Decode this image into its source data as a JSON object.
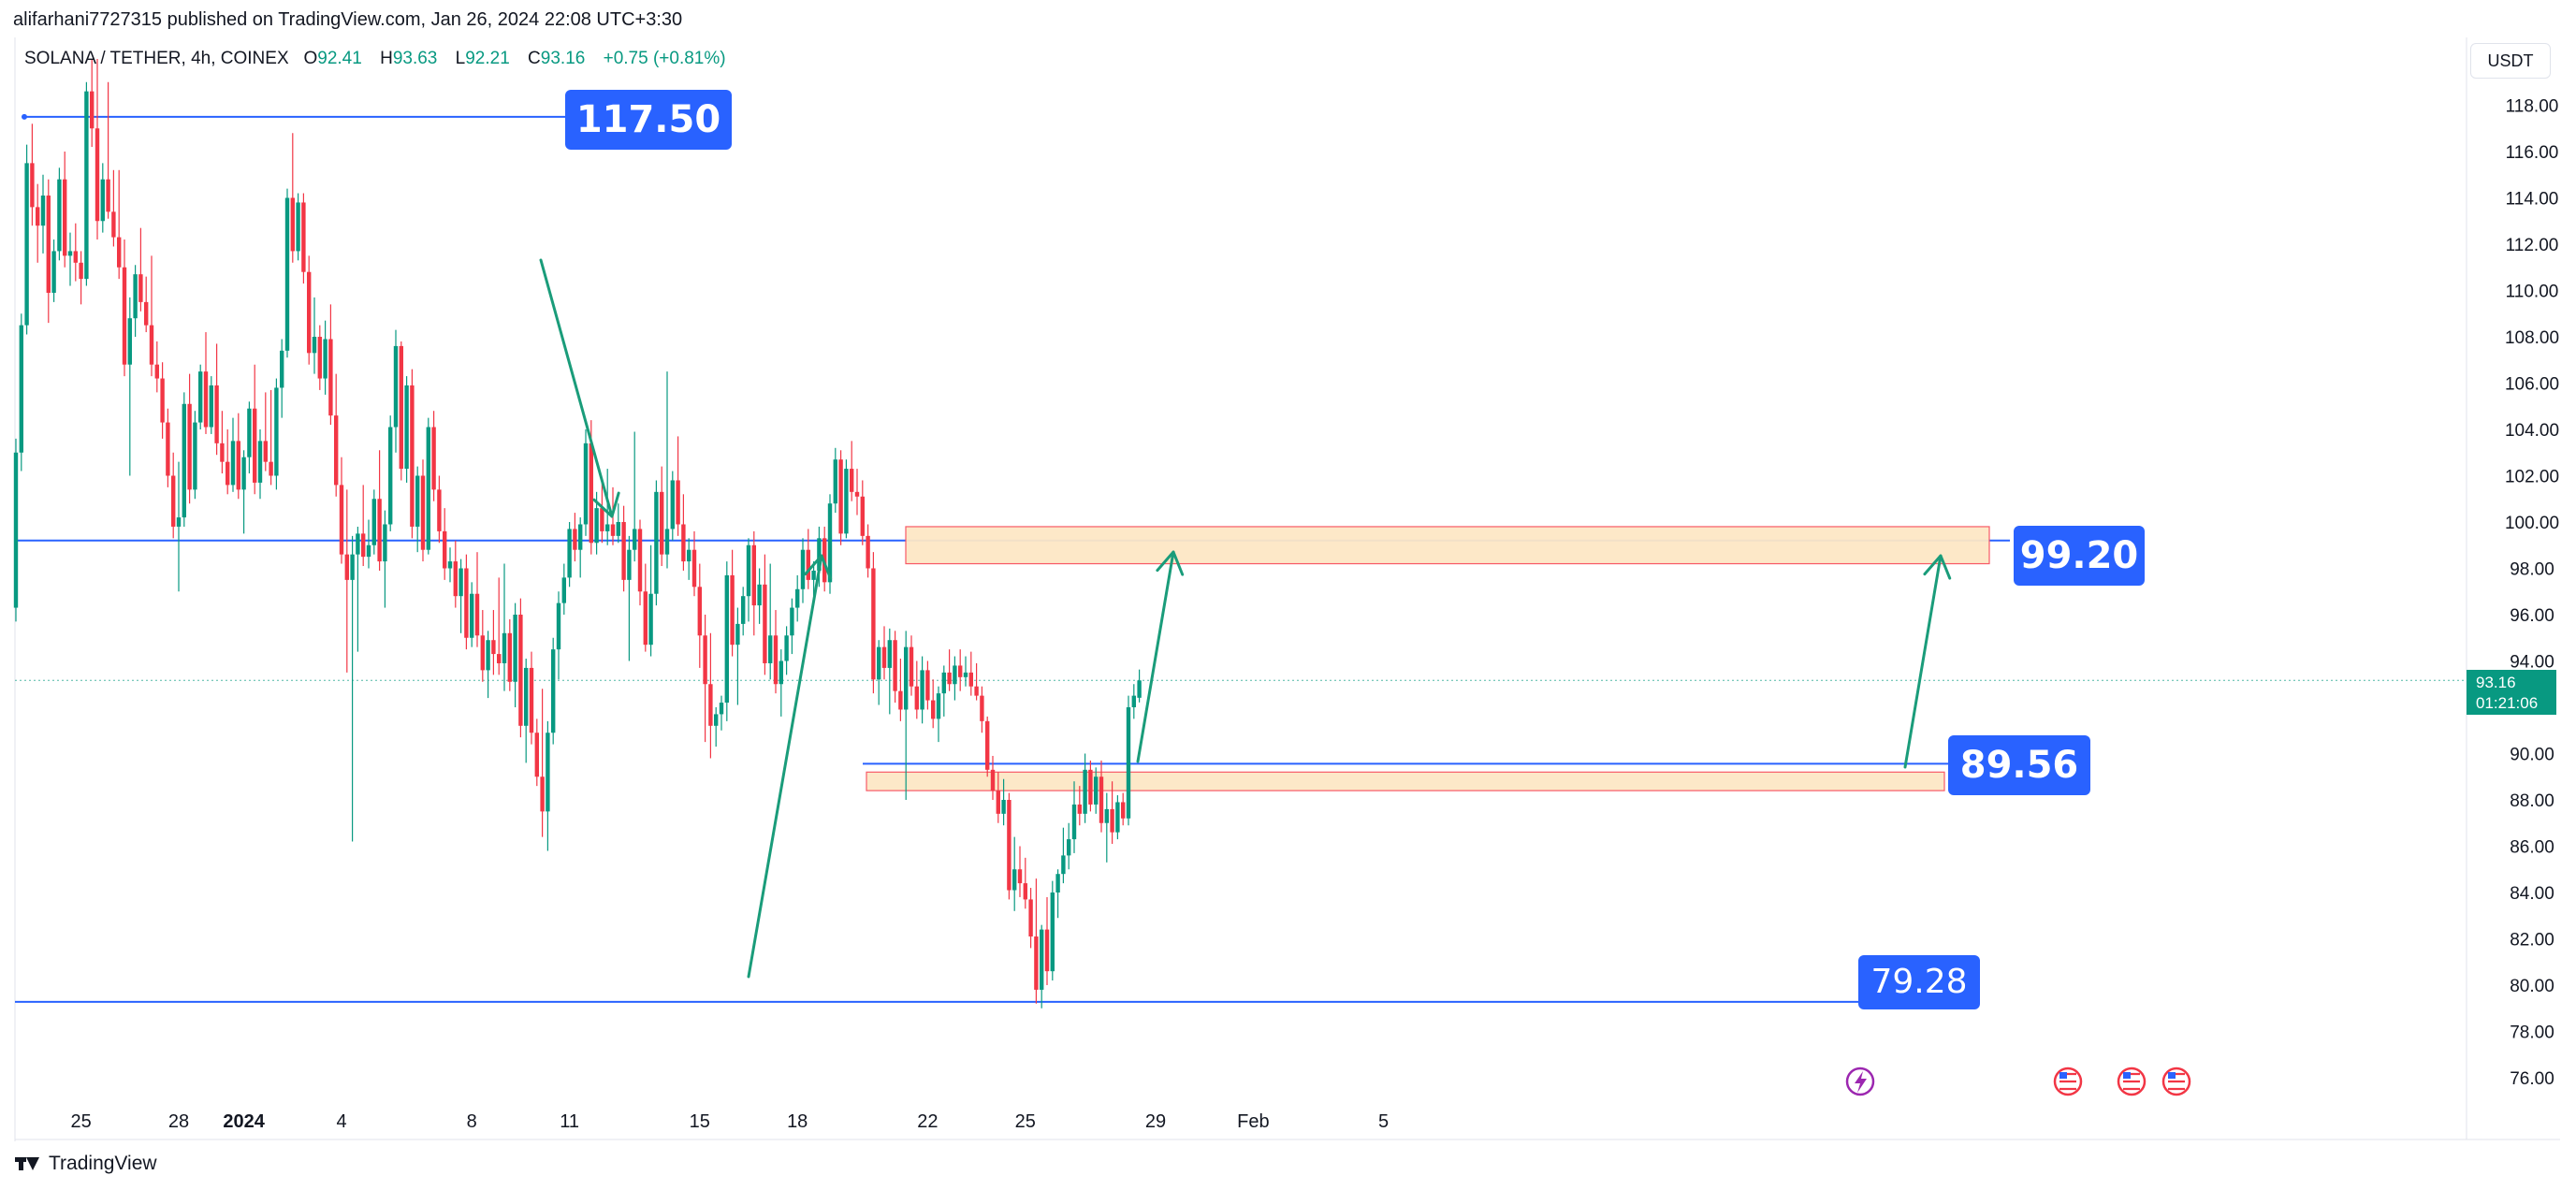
{
  "header": {
    "publisher": "alifarhani7727315 published on TradingView.com, Jan 26, 2024 22:08 UTC+3:30",
    "symbol": "SOLANA / TETHER, 4h, COINEX",
    "open_label": "O",
    "open": "92.41",
    "high_label": "H",
    "high": "93.63",
    "low_label": "L",
    "low": "92.21",
    "close_label": "C",
    "close": "93.16",
    "change": "+0.75 (+0.81%)",
    "currency": "USDT"
  },
  "price_tag": {
    "price": "93.16",
    "countdown": "01:21:06"
  },
  "footer": {
    "brand": "TradingView"
  },
  "colors": {
    "up": "#089981",
    "down": "#f23645",
    "line": "#2962ff",
    "zone_fill": "#fde7c6",
    "zone_stroke": "#f7525f",
    "arrow": "#1a9c7a"
  },
  "chart_data": {
    "type": "candlestick",
    "timeframe": "4h",
    "y_axis": {
      "min": 75,
      "max": 120,
      "ticks": [
        "76.00",
        "78.00",
        "80.00",
        "82.00",
        "84.00",
        "86.00",
        "88.00",
        "90.00",
        "94.00",
        "96.00",
        "98.00",
        "100.00",
        "102.00",
        "104.00",
        "106.00",
        "108.00",
        "110.00",
        "112.00",
        "114.00",
        "116.00",
        "118.00"
      ]
    },
    "x_axis": {
      "labels": [
        {
          "text": "25",
          "slot": 12
        },
        {
          "text": "28",
          "slot": 30
        },
        {
          "text": "2024",
          "slot": 42
        },
        {
          "text": "4",
          "slot": 60
        },
        {
          "text": "8",
          "slot": 84
        },
        {
          "text": "11",
          "slot": 102
        },
        {
          "text": "15",
          "slot": 126
        },
        {
          "text": "18",
          "slot": 144
        },
        {
          "text": "22",
          "slot": 168
        },
        {
          "text": "25",
          "slot": 186
        },
        {
          "text": "29",
          "slot": 210
        },
        {
          "text": "Feb",
          "slot": 228
        },
        {
          "text": "5",
          "slot": 252
        }
      ],
      "slot_min": 0,
      "slot_max": 262
    },
    "key_levels": [
      {
        "label": "117.50",
        "price": 117.5
      },
      {
        "label": "99.20",
        "price": 99.2
      },
      {
        "label": "89.56",
        "price": 89.56
      },
      {
        "label": "79.28",
        "price": 79.28
      }
    ],
    "zones": [
      {
        "top": 99.8,
        "bottom": 98.2
      },
      {
        "top": 89.2,
        "bottom": 88.4
      }
    ],
    "candles": [
      [
        96.3,
        103.6,
        95.7,
        103.0
      ],
      [
        103.0,
        109.0,
        102.2,
        108.5
      ],
      [
        108.5,
        116.3,
        108.1,
        115.5
      ],
      [
        115.5,
        117.2,
        112.8,
        113.6
      ],
      [
        113.6,
        114.6,
        111.2,
        112.8
      ],
      [
        112.8,
        115.0,
        111.6,
        114.1
      ],
      [
        114.1,
        114.8,
        108.6,
        109.9
      ],
      [
        109.9,
        112.2,
        109.5,
        111.7
      ],
      [
        111.7,
        115.3,
        111.3,
        114.8
      ],
      [
        114.8,
        116.0,
        111.0,
        111.5
      ],
      [
        111.5,
        112.5,
        110.2,
        111.7
      ],
      [
        111.7,
        112.9,
        110.4,
        111.2
      ],
      [
        111.2,
        111.7,
        109.4,
        110.5
      ],
      [
        110.5,
        119.0,
        110.2,
        118.6
      ],
      [
        118.6,
        120.0,
        116.2,
        117.0
      ],
      [
        117.0,
        120.0,
        112.2,
        113.0
      ],
      [
        113.0,
        115.5,
        112.5,
        114.8
      ],
      [
        114.8,
        119.0,
        113.1,
        113.4
      ],
      [
        113.4,
        115.2,
        111.9,
        112.3
      ],
      [
        112.3,
        115.2,
        110.5,
        111.0
      ],
      [
        111.0,
        112.2,
        106.3,
        106.8
      ],
      [
        106.8,
        109.7,
        102.0,
        108.8
      ],
      [
        108.8,
        111.1,
        108.0,
        110.7
      ],
      [
        110.7,
        112.7,
        109.1,
        109.5
      ],
      [
        109.5,
        110.6,
        108.2,
        108.5
      ],
      [
        108.5,
        111.5,
        106.3,
        106.8
      ],
      [
        106.8,
        107.8,
        105.6,
        106.2
      ],
      [
        106.2,
        106.9,
        103.6,
        104.3
      ],
      [
        104.3,
        104.9,
        101.5,
        102.0
      ],
      [
        102.0,
        103.0,
        99.3,
        99.8
      ],
      [
        99.8,
        102.6,
        97.0,
        100.2
      ],
      [
        100.2,
        105.6,
        99.8,
        105.1
      ],
      [
        105.1,
        106.4,
        100.8,
        101.4
      ],
      [
        101.4,
        104.8,
        101.0,
        104.3
      ],
      [
        104.3,
        106.8,
        104.0,
        106.5
      ],
      [
        106.5,
        108.2,
        103.8,
        104.1
      ],
      [
        104.1,
        106.3,
        103.8,
        105.9
      ],
      [
        105.9,
        107.7,
        102.9,
        103.4
      ],
      [
        103.4,
        104.8,
        102.1,
        102.6
      ],
      [
        102.6,
        104.0,
        101.2,
        101.6
      ],
      [
        101.6,
        104.5,
        101.3,
        103.5
      ],
      [
        103.5,
        104.7,
        101.0,
        101.4
      ],
      [
        101.4,
        103.1,
        99.5,
        102.8
      ],
      [
        102.8,
        105.2,
        102.1,
        104.9
      ],
      [
        104.9,
        106.8,
        101.2,
        101.7
      ],
      [
        101.7,
        104.0,
        101.0,
        103.5
      ],
      [
        103.5,
        105.6,
        102.2,
        102.6
      ],
      [
        102.6,
        105.7,
        101.6,
        102.0
      ],
      [
        102.0,
        106.2,
        101.4,
        105.8
      ],
      [
        105.8,
        107.9,
        104.5,
        107.4
      ],
      [
        107.4,
        114.4,
        107.1,
        114.0
      ],
      [
        114.0,
        116.8,
        111.2,
        111.7
      ],
      [
        111.7,
        114.2,
        111.3,
        113.8
      ],
      [
        113.8,
        114.2,
        110.3,
        110.8
      ],
      [
        110.8,
        111.5,
        106.8,
        107.3
      ],
      [
        107.3,
        109.7,
        106.4,
        108.0
      ],
      [
        108.0,
        108.5,
        105.7,
        106.2
      ],
      [
        106.2,
        108.7,
        105.5,
        107.9
      ],
      [
        107.9,
        109.4,
        104.2,
        104.6
      ],
      [
        104.6,
        106.4,
        101.1,
        101.6
      ],
      [
        101.6,
        102.8,
        98.2,
        98.6
      ],
      [
        98.6,
        101.4,
        93.5,
        97.5
      ],
      [
        97.5,
        99.4,
        86.2,
        98.6
      ],
      [
        98.6,
        99.8,
        94.4,
        99.5
      ],
      [
        99.5,
        101.6,
        98.1,
        98.5
      ],
      [
        98.5,
        100.1,
        98.0,
        99.0
      ],
      [
        99.0,
        101.4,
        98.6,
        101.0
      ],
      [
        101.0,
        103.1,
        97.9,
        98.3
      ],
      [
        98.3,
        100.5,
        96.3,
        99.9
      ],
      [
        99.9,
        104.6,
        99.6,
        104.1
      ],
      [
        104.1,
        108.3,
        103.0,
        107.6
      ],
      [
        107.6,
        107.8,
        101.8,
        102.3
      ],
      [
        102.3,
        106.3,
        101.7,
        105.9
      ],
      [
        105.9,
        106.6,
        99.3,
        99.8
      ],
      [
        99.8,
        102.4,
        98.7,
        102.0
      ],
      [
        102.0,
        102.7,
        98.3,
        98.8
      ],
      [
        98.8,
        104.5,
        98.6,
        104.1
      ],
      [
        104.1,
        104.8,
        100.9,
        101.4
      ],
      [
        101.4,
        102.0,
        99.1,
        99.6
      ],
      [
        99.6,
        100.6,
        97.5,
        98.0
      ],
      [
        98.0,
        98.9,
        97.4,
        98.3
      ],
      [
        98.3,
        99.2,
        96.3,
        96.8
      ],
      [
        96.8,
        98.4,
        95.2,
        98.0
      ],
      [
        98.0,
        98.6,
        94.5,
        95.0
      ],
      [
        95.0,
        97.4,
        94.6,
        96.9
      ],
      [
        96.9,
        98.7,
        94.6,
        95.1
      ],
      [
        95.1,
        96.2,
        93.1,
        93.6
      ],
      [
        93.6,
        95.3,
        92.4,
        94.9
      ],
      [
        94.9,
        96.2,
        93.4,
        94.3
      ],
      [
        94.3,
        97.6,
        93.4,
        93.9
      ],
      [
        93.9,
        98.2,
        92.7,
        95.2
      ],
      [
        95.2,
        95.8,
        92.7,
        93.1
      ],
      [
        93.1,
        96.5,
        92.0,
        96.0
      ],
      [
        96.0,
        96.7,
        90.7,
        91.2
      ],
      [
        91.2,
        94.1,
        89.6,
        93.7
      ],
      [
        93.7,
        94.4,
        90.4,
        90.9
      ],
      [
        90.9,
        91.5,
        88.6,
        89.0
      ],
      [
        89.0,
        92.8,
        86.4,
        87.5
      ],
      [
        87.5,
        91.4,
        85.8,
        90.9
      ],
      [
        90.9,
        95.0,
        90.4,
        94.5
      ],
      [
        94.5,
        97.0,
        93.2,
        96.5
      ],
      [
        96.5,
        98.2,
        96.0,
        97.6
      ],
      [
        97.6,
        100.0,
        97.2,
        99.7
      ],
      [
        99.7,
        100.4,
        98.3,
        98.8
      ],
      [
        98.8,
        100.2,
        97.6,
        99.9
      ],
      [
        99.9,
        104.0,
        99.4,
        103.4
      ],
      [
        103.4,
        104.4,
        98.6,
        99.1
      ],
      [
        99.1,
        101.3,
        98.6,
        100.6
      ],
      [
        100.6,
        101.9,
        99.1,
        99.6
      ],
      [
        99.6,
        102.3,
        99.0,
        99.9
      ],
      [
        99.9,
        101.5,
        99.0,
        99.4
      ],
      [
        99.4,
        100.8,
        99.1,
        100.0
      ],
      [
        100.0,
        100.7,
        97.0,
        97.5
      ],
      [
        97.5,
        99.4,
        94.0,
        98.8
      ],
      [
        98.8,
        103.9,
        98.3,
        99.7
      ],
      [
        99.7,
        100.1,
        96.4,
        97.0
      ],
      [
        97.0,
        98.2,
        94.4,
        94.7
      ],
      [
        94.7,
        99.0,
        94.2,
        96.9
      ],
      [
        96.9,
        101.8,
        96.4,
        101.3
      ],
      [
        101.3,
        102.4,
        98.1,
        98.6
      ],
      [
        98.6,
        106.5,
        98.0,
        99.7
      ],
      [
        99.7,
        102.2,
        99.2,
        101.8
      ],
      [
        101.8,
        103.7,
        99.4,
        99.9
      ],
      [
        99.9,
        101.2,
        97.9,
        98.3
      ],
      [
        98.3,
        99.3,
        97.5,
        98.8
      ],
      [
        98.8,
        99.6,
        96.8,
        97.2
      ],
      [
        97.2,
        98.2,
        93.7,
        95.1
      ],
      [
        95.1,
        96.0,
        90.5,
        93.0
      ],
      [
        93.0,
        95.2,
        89.8,
        91.2
      ],
      [
        91.2,
        92.0,
        90.3,
        91.7
      ],
      [
        91.7,
        92.5,
        91.0,
        92.2
      ],
      [
        92.2,
        98.3,
        91.4,
        97.7
      ],
      [
        97.7,
        98.8,
        94.2,
        94.7
      ],
      [
        94.7,
        96.3,
        92.1,
        95.6
      ],
      [
        95.6,
        97.2,
        95.1,
        96.8
      ],
      [
        96.8,
        99.3,
        95.7,
        99.0
      ],
      [
        99.0,
        99.6,
        95.1,
        96.4
      ],
      [
        96.4,
        98.0,
        95.6,
        97.3
      ],
      [
        97.3,
        98.6,
        93.4,
        93.9
      ],
      [
        93.9,
        98.2,
        93.2,
        95.1
      ],
      [
        95.1,
        96.2,
        92.6,
        93.0
      ],
      [
        93.0,
        94.5,
        91.6,
        94.0
      ],
      [
        94.0,
        95.5,
        93.4,
        95.1
      ],
      [
        95.1,
        96.7,
        94.3,
        96.3
      ],
      [
        96.3,
        97.7,
        95.7,
        97.1
      ],
      [
        97.1,
        99.3,
        96.5,
        98.8
      ],
      [
        98.8,
        99.7,
        97.1,
        97.5
      ],
      [
        97.5,
        98.3,
        96.5,
        97.9
      ],
      [
        97.9,
        99.8,
        97.2,
        99.3
      ],
      [
        99.3,
        99.8,
        97.0,
        97.4
      ],
      [
        97.4,
        101.2,
        96.9,
        100.8
      ],
      [
        100.8,
        103.2,
        100.4,
        102.7
      ],
      [
        102.7,
        103.1,
        99.0,
        99.5
      ],
      [
        99.5,
        102.7,
        99.3,
        102.3
      ],
      [
        102.3,
        103.5,
        100.9,
        101.3
      ],
      [
        101.3,
        102.3,
        100.3,
        101.1
      ],
      [
        101.1,
        101.8,
        99.0,
        99.4
      ],
      [
        99.4,
        99.9,
        97.6,
        98.0
      ],
      [
        98.0,
        98.7,
        92.6,
        93.2
      ],
      [
        93.2,
        94.9,
        92.1,
        94.6
      ],
      [
        94.6,
        95.5,
        93.2,
        93.7
      ],
      [
        93.7,
        95.4,
        91.7,
        94.9
      ],
      [
        94.9,
        95.3,
        92.2,
        92.7
      ],
      [
        92.7,
        94.1,
        91.4,
        91.9
      ],
      [
        91.9,
        95.3,
        88.0,
        94.6
      ],
      [
        94.6,
        95.1,
        92.5,
        92.9
      ],
      [
        92.9,
        94.0,
        91.5,
        91.9
      ],
      [
        91.9,
        94.2,
        91.3,
        93.6
      ],
      [
        93.6,
        94.0,
        91.9,
        92.3
      ],
      [
        92.3,
        93.2,
        91.1,
        91.5
      ],
      [
        91.5,
        92.9,
        90.5,
        92.6
      ],
      [
        92.6,
        93.8,
        91.6,
        93.5
      ],
      [
        93.5,
        94.5,
        92.7,
        93.0
      ],
      [
        93.0,
        94.2,
        92.3,
        93.8
      ],
      [
        93.8,
        94.5,
        92.7,
        93.3
      ],
      [
        93.3,
        94.2,
        92.9,
        93.5
      ],
      [
        93.5,
        94.4,
        92.5,
        92.9
      ],
      [
        92.9,
        93.9,
        92.3,
        92.5
      ],
      [
        92.5,
        92.9,
        90.9,
        91.4
      ],
      [
        91.4,
        91.6,
        89.0,
        89.3
      ],
      [
        89.3,
        89.9,
        88.0,
        88.4
      ],
      [
        88.4,
        89.2,
        87.0,
        87.4
      ],
      [
        87.4,
        88.9,
        86.9,
        88.0
      ],
      [
        88.0,
        88.3,
        83.7,
        84.1
      ],
      [
        84.1,
        86.4,
        83.2,
        85.0
      ],
      [
        85.0,
        86.0,
        83.8,
        84.4
      ],
      [
        84.4,
        85.5,
        83.3,
        83.7
      ],
      [
        83.7,
        84.2,
        81.6,
        82.1
      ],
      [
        82.1,
        84.6,
        79.2,
        79.8
      ],
      [
        79.8,
        82.6,
        79.0,
        82.4
      ],
      [
        82.4,
        83.8,
        80.0,
        80.6
      ],
      [
        80.6,
        84.5,
        80.2,
        84.0
      ],
      [
        84.0,
        85.0,
        82.9,
        84.8
      ],
      [
        84.8,
        86.8,
        84.4,
        85.6
      ],
      [
        85.6,
        87.0,
        85.0,
        86.3
      ],
      [
        86.3,
        88.8,
        85.7,
        87.8
      ],
      [
        87.8,
        88.6,
        86.9,
        87.4
      ],
      [
        87.4,
        90.0,
        87.0,
        89.3
      ],
      [
        89.3,
        89.7,
        87.5,
        87.8
      ],
      [
        87.8,
        89.4,
        87.4,
        89.0
      ],
      [
        89.0,
        89.7,
        86.6,
        87.0
      ],
      [
        87.0,
        88.3,
        85.3,
        87.6
      ],
      [
        87.6,
        88.8,
        86.1,
        86.6
      ],
      [
        86.6,
        88.2,
        86.3,
        87.9
      ],
      [
        87.9,
        88.3,
        86.9,
        87.2
      ],
      [
        87.2,
        92.5,
        86.9,
        92.0
      ],
      [
        92.0,
        93.0,
        91.5,
        92.5
      ],
      [
        92.41,
        93.63,
        92.21,
        93.16
      ]
    ]
  }
}
